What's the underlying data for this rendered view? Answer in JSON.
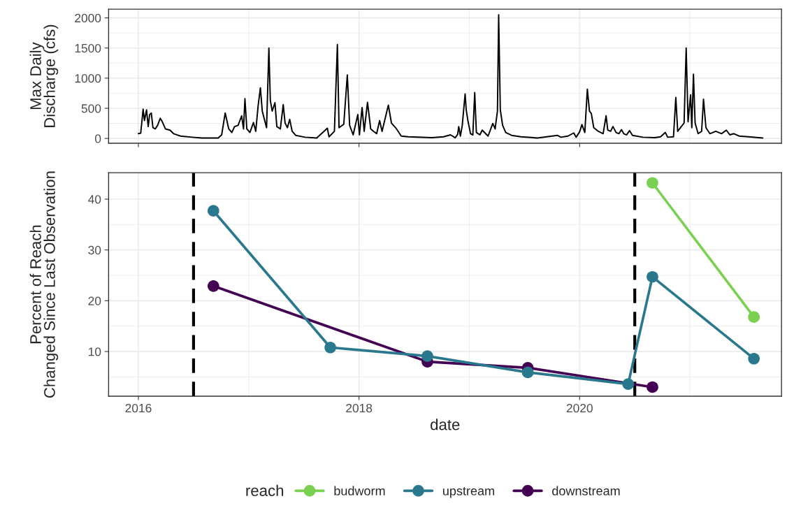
{
  "chart_data": [
    {
      "type": "line",
      "ylabel": "Max Daily\nDischarge (cfs)",
      "xlim": [
        2015.73,
        2021.83
      ],
      "xticks": [
        2016,
        2018,
        2020
      ],
      "ylim": [
        -80,
        2145
      ],
      "yticks": [
        0,
        500,
        1000,
        1500,
        2000
      ],
      "grid": true,
      "tick_labels": "y",
      "series": [
        {
          "color": "#000000",
          "x": [
            2016.0,
            2016.021,
            2016.043,
            2016.055,
            2016.074,
            2016.089,
            2016.102,
            2016.117,
            2016.132,
            2016.153,
            2016.174,
            2016.198,
            2016.217,
            2016.245,
            2016.287,
            2016.319,
            2016.383,
            2016.489,
            2016.574,
            2016.723,
            2016.755,
            2016.787,
            2016.819,
            2016.847,
            2016.872,
            2016.904,
            2016.936,
            2016.953,
            2016.966,
            2016.983,
            2017.011,
            2017.043,
            2017.064,
            2017.085,
            2017.106,
            2017.123,
            2017.145,
            2017.162,
            2017.183,
            2017.196,
            2017.213,
            2017.238,
            2017.255,
            2017.287,
            2017.313,
            2017.33,
            2017.351,
            2017.372,
            2017.394,
            2017.426,
            2017.511,
            2017.617,
            2017.713,
            2017.728,
            2017.777,
            2017.804,
            2017.819,
            2017.862,
            2017.894,
            2017.915,
            2017.947,
            2017.989,
            2018.004,
            2018.028,
            2018.047,
            2018.077,
            2018.106,
            2018.132,
            2018.16,
            2018.187,
            2018.209,
            2018.266,
            2018.294,
            2018.34,
            2018.383,
            2018.447,
            2018.66,
            2018.766,
            2018.83,
            2018.872,
            2018.894,
            2018.904,
            2018.919,
            2018.936,
            2018.962,
            2018.972,
            2018.989,
            2019.011,
            2019.032,
            2019.049,
            2019.064,
            2019.096,
            2019.117,
            2019.17,
            2019.213,
            2019.234,
            2019.255,
            2019.266,
            2019.281,
            2019.302,
            2019.33,
            2019.383,
            2019.468,
            2019.617,
            2019.798,
            2019.83,
            2019.894,
            2019.947,
            2019.968,
            2020.0,
            2020.021,
            2020.047,
            2020.07,
            2020.089,
            2020.106,
            2020.128,
            2020.17,
            2020.213,
            2020.24,
            2020.255,
            2020.281,
            2020.302,
            2020.33,
            2020.357,
            2020.379,
            2020.4,
            2020.426,
            2020.453,
            2020.479,
            2020.574,
            2020.681,
            2020.734,
            2020.777,
            2020.798,
            2020.851,
            2020.872,
            2020.889,
            2020.947,
            2020.966,
            2020.983,
            2021.006,
            2021.017,
            2021.032,
            2021.047,
            2021.074,
            2021.106,
            2021.123,
            2021.145,
            2021.181,
            2021.234,
            2021.287,
            2021.33,
            2021.362,
            2021.398,
            2021.447,
            2021.532,
            2021.66
          ],
          "values": [
            79,
            87,
            485,
            296,
            473,
            197,
            395,
            422,
            178,
            158,
            217,
            335,
            276,
            158,
            138,
            79,
            39,
            20,
            8,
            8,
            59,
            422,
            158,
            99,
            197,
            217,
            375,
            158,
            659,
            158,
            99,
            264,
            118,
            533,
            840,
            454,
            296,
            178,
            1499,
            631,
            454,
            592,
            197,
            158,
            560,
            256,
            178,
            316,
            118,
            51,
            20,
            8,
            170,
            28,
            118,
            1558,
            178,
            237,
            1053,
            217,
            59,
            395,
            59,
            513,
            118,
            600,
            158,
            118,
            79,
            296,
            118,
            552,
            256,
            158,
            39,
            28,
            12,
            28,
            59,
            12,
            67,
            197,
            39,
            217,
            738,
            473,
            276,
            79,
            59,
            761,
            99,
            59,
            138,
            39,
            249,
            158,
            454,
            2051,
            473,
            217,
            99,
            51,
            28,
            8,
            51,
            20,
            39,
            91,
            20,
            110,
            229,
            99,
            817,
            454,
            414,
            178,
            118,
            79,
            375,
            138,
            118,
            197,
            99,
            79,
            146,
            79,
            59,
            130,
            51,
            20,
            12,
            28,
            99,
            20,
            28,
            679,
            118,
            256,
            1499,
            276,
            722,
            178,
            1065,
            256,
            79,
            118,
            651,
            178,
            79,
            118,
            79,
            138,
            59,
            79,
            39,
            28,
            8
          ]
        }
      ]
    },
    {
      "type": "line",
      "xlabel": "date",
      "ylabel": "Percent of Reach\nChanged Since Last Observation",
      "xlim": [
        2015.73,
        2021.83
      ],
      "xticks": [
        2016,
        2018,
        2020
      ],
      "ylim": [
        1.2,
        45.2
      ],
      "yticks": [
        10,
        20,
        30,
        40
      ],
      "grid": true,
      "marker": "circle",
      "legend": "bottom",
      "legend_title": "reach",
      "ref_lines": [
        {
          "axis": "x",
          "value": 2016.5,
          "color": "#000000",
          "line_style": "dashed"
        },
        {
          "axis": "x",
          "value": 2020.5,
          "color": "#000000",
          "line_style": "dashed"
        }
      ],
      "series": [
        {
          "name": "budworm",
          "color": "#7ad151",
          "x": [
            2020.66,
            2021.58
          ],
          "values": [
            43.2,
            16.8
          ]
        },
        {
          "name": "upstream",
          "color": "#2a788e",
          "x": [
            2016.68,
            2017.74,
            2018.62,
            2019.53,
            2020.44,
            2020.66,
            2021.58
          ],
          "values": [
            37.7,
            10.8,
            9.1,
            5.9,
            3.6,
            24.7,
            8.6
          ]
        },
        {
          "name": "downstream",
          "color": "#440154",
          "x": [
            2016.68,
            2018.62,
            2019.53,
            2020.66
          ],
          "values": [
            22.9,
            8.0,
            6.8,
            3.0
          ]
        }
      ]
    }
  ]
}
